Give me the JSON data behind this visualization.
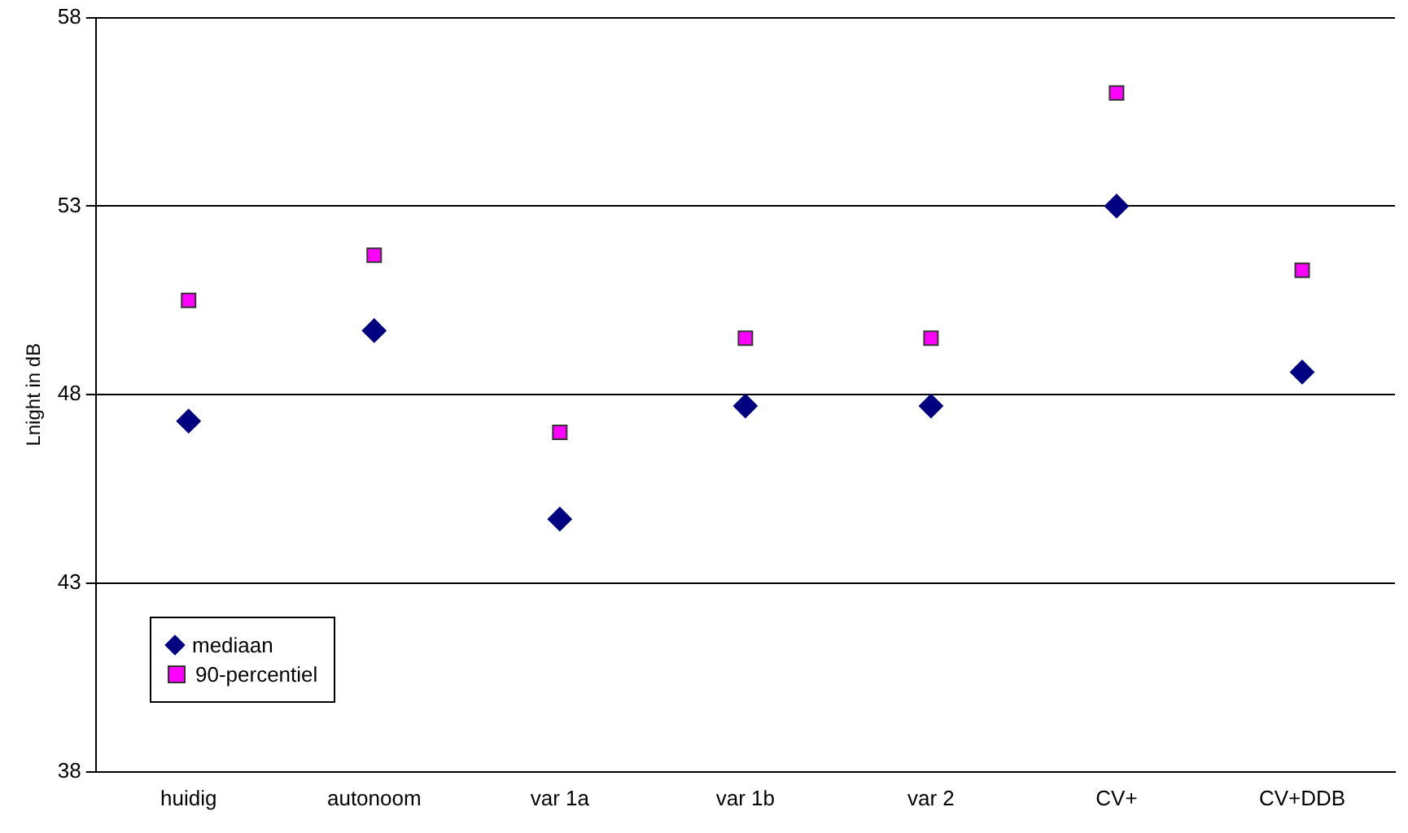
{
  "chart_data": {
    "type": "scatter",
    "ylabel": "Lnight in dB",
    "categories": [
      "huidig",
      "autonoom",
      "var 1a",
      "var 1b",
      "var 2",
      "CV+",
      "CV+DDB"
    ],
    "series": [
      {
        "name": "mediaan",
        "color": "#000080",
        "marker": "diamond",
        "values": [
          47.3,
          49.7,
          44.7,
          47.7,
          47.7,
          53.0,
          48.6
        ]
      },
      {
        "name": "90-percentiel",
        "color": "#ff00ff",
        "marker": "square",
        "values": [
          50.5,
          51.7,
          47.0,
          49.5,
          49.5,
          56.0,
          51.3
        ]
      }
    ],
    "ylim": [
      38,
      58
    ],
    "yticks": [
      38,
      43,
      48,
      53,
      58
    ],
    "grid": "y",
    "legend": "bottom left"
  }
}
